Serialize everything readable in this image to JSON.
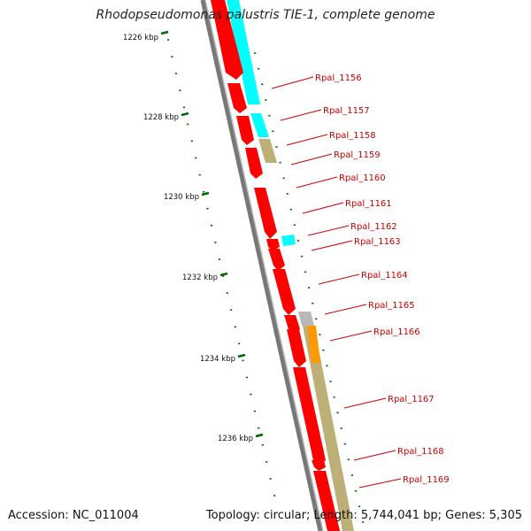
{
  "title": "Rhodopseudomonas palustris TIE-1, complete genome",
  "accession": "Accession: NC_011004",
  "summary": "Topology: circular; Length: 5,744,041 bp; Genes: 5,305",
  "colors": {
    "cds": "#ff0000",
    "cyan": "#00ffff",
    "tan": "#bdb076",
    "orange": "#ff9900",
    "grey": "#b8b8b8",
    "backbone": "#777777",
    "tick": "#006600",
    "label": "#cc0000"
  },
  "ticks": [
    {
      "label": "1226 kbp"
    },
    {
      "label": "1228 kbp"
    },
    {
      "label": "1230 kbp"
    },
    {
      "label": "1232 kbp"
    },
    {
      "label": "1234 kbp"
    },
    {
      "label": "1236 kbp"
    }
  ],
  "genes": [
    {
      "label": "Rpal_1156"
    },
    {
      "label": "Rpal_1157"
    },
    {
      "label": "Rpal_1158"
    },
    {
      "label": "Rpal_1159"
    },
    {
      "label": "Rpal_1160"
    },
    {
      "label": "Rpal_1161"
    },
    {
      "label": "Rpal_1162"
    },
    {
      "label": "Rpal_1163"
    },
    {
      "label": "Rpal_1164"
    },
    {
      "label": "Rpal_1165"
    },
    {
      "label": "Rpal_1166"
    },
    {
      "label": "Rpal_1167"
    },
    {
      "label": "Rpal_1168"
    },
    {
      "label": "Rpal_1169"
    }
  ]
}
